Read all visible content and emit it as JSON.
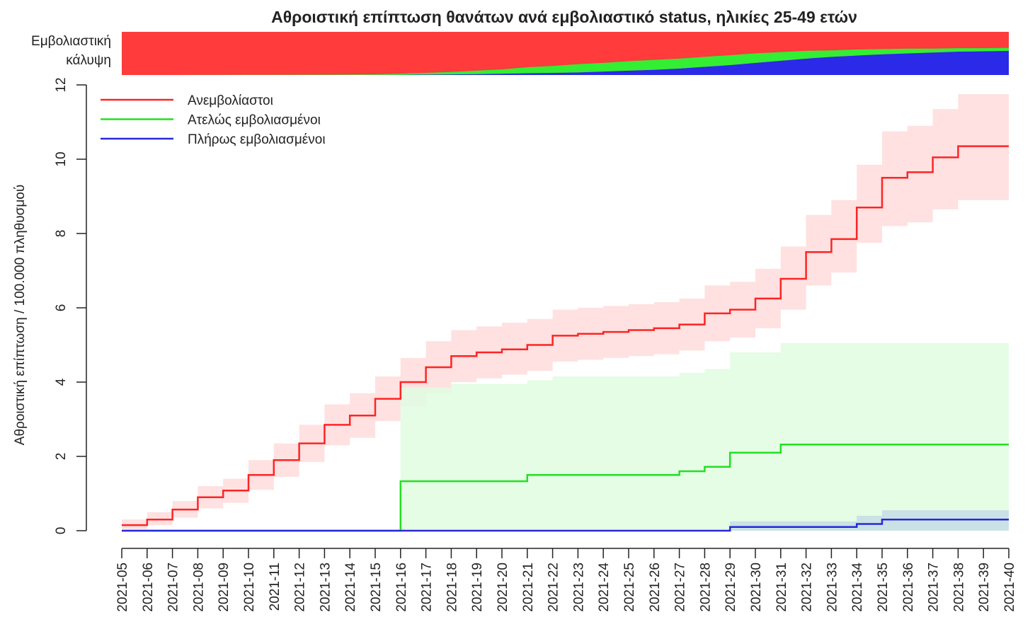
{
  "chart_data": {
    "type": "line",
    "step": true,
    "title": "Αθροιστική επίπτωση θανάτων ανά εμβολιαστικό status, ηλικίες 25-49 ετών",
    "ylabel": "Αθροιστική επίπτωση / 100.000 πληθυσμού",
    "categories": [
      "2021-05",
      "2021-06",
      "2021-07",
      "2021-08",
      "2021-09",
      "2021-10",
      "2021-11",
      "2021-12",
      "2021-13",
      "2021-14",
      "2021-15",
      "2021-16",
      "2021-17",
      "2021-18",
      "2021-19",
      "2021-20",
      "2021-21",
      "2021-22",
      "2021-23",
      "2021-24",
      "2021-25",
      "2021-26",
      "2021-27",
      "2021-28",
      "2021-29",
      "2021-30",
      "2021-31",
      "2021-32",
      "2021-33",
      "2021-34",
      "2021-35",
      "2021-36",
      "2021-37",
      "2021-38",
      "2021-39",
      "2021-40"
    ],
    "ylim": [
      0,
      12
    ],
    "yticks": [
      0,
      2,
      4,
      6,
      8,
      10,
      12
    ],
    "legend": "top-left",
    "series": [
      {
        "name": "Ανεμβολίαστοι",
        "color": "#ff2424",
        "band_color": "#ffdcdc",
        "values": [
          0.15,
          0.3,
          0.57,
          0.9,
          1.08,
          1.5,
          1.9,
          2.35,
          2.85,
          3.1,
          3.55,
          4.0,
          4.4,
          4.7,
          4.8,
          4.88,
          5.0,
          5.25,
          5.3,
          5.35,
          5.4,
          5.45,
          5.55,
          5.85,
          5.95,
          6.25,
          6.78,
          7.5,
          7.85,
          8.7,
          9.5,
          9.65,
          10.05,
          10.35,
          10.35,
          10.35
        ],
        "lower": [
          0.05,
          0.15,
          0.35,
          0.6,
          0.75,
          1.1,
          1.45,
          1.85,
          2.3,
          2.5,
          2.95,
          3.35,
          3.7,
          4.0,
          4.1,
          4.2,
          4.3,
          4.55,
          4.6,
          4.65,
          4.7,
          4.75,
          4.85,
          5.1,
          5.2,
          5.45,
          5.95,
          6.6,
          6.95,
          7.75,
          8.2,
          8.3,
          8.65,
          8.9,
          8.9,
          8.9
        ],
        "upper": [
          0.3,
          0.5,
          0.8,
          1.2,
          1.4,
          1.9,
          2.35,
          2.85,
          3.4,
          3.7,
          4.15,
          4.65,
          5.1,
          5.4,
          5.5,
          5.6,
          5.7,
          5.95,
          6.0,
          6.05,
          6.1,
          6.15,
          6.25,
          6.6,
          6.7,
          7.05,
          7.65,
          8.5,
          8.9,
          9.85,
          10.75,
          10.9,
          11.35,
          11.75,
          11.75,
          11.75
        ]
      },
      {
        "name": "Ατελώς εμβολιασμένοι",
        "color": "#22e022",
        "band_color": "#e0fbe0",
        "values": [
          0,
          0,
          0,
          0,
          0,
          0,
          0,
          0,
          0,
          0,
          0,
          1.33,
          1.33,
          1.33,
          1.33,
          1.33,
          1.5,
          1.5,
          1.5,
          1.5,
          1.5,
          1.5,
          1.6,
          1.72,
          2.1,
          2.1,
          2.32,
          2.32,
          2.32,
          2.32,
          2.32,
          2.32,
          2.32,
          2.32,
          2.32,
          2.32
        ],
        "lower": [
          null,
          null,
          null,
          null,
          null,
          null,
          null,
          null,
          null,
          null,
          null,
          0,
          0,
          0,
          0,
          0,
          0,
          0,
          0,
          0,
          0,
          0,
          0,
          0,
          0,
          0,
          0,
          0,
          0,
          0,
          0,
          0,
          0,
          0,
          0,
          0
        ],
        "upper": [
          null,
          null,
          null,
          null,
          null,
          null,
          null,
          null,
          null,
          null,
          null,
          3.85,
          3.85,
          3.95,
          3.95,
          3.95,
          4.05,
          4.15,
          4.15,
          4.15,
          4.15,
          4.15,
          4.25,
          4.35,
          4.8,
          4.8,
          5.05,
          5.05,
          5.05,
          5.05,
          5.05,
          5.05,
          5.05,
          5.05,
          5.05,
          5.05
        ]
      },
      {
        "name": "Πλήρως εμβολιασμένοι",
        "color": "#2828d8",
        "band_color": "#c6dde6",
        "values": [
          0,
          0,
          0,
          0,
          0,
          0,
          0,
          0,
          0,
          0,
          0,
          0,
          0,
          0,
          0,
          0,
          0,
          0,
          0,
          0,
          0,
          0,
          0,
          0,
          0.1,
          0.1,
          0.1,
          0.1,
          0.1,
          0.18,
          0.3,
          0.3,
          0.3,
          0.3,
          0.3,
          0.3
        ],
        "lower": [
          null,
          null,
          null,
          null,
          null,
          null,
          null,
          null,
          null,
          null,
          null,
          null,
          null,
          null,
          null,
          null,
          null,
          null,
          null,
          null,
          null,
          null,
          null,
          null,
          0,
          0,
          0,
          0,
          0,
          0,
          0,
          0,
          0,
          0,
          0,
          0
        ],
        "upper": [
          null,
          null,
          null,
          null,
          null,
          null,
          null,
          null,
          null,
          null,
          null,
          null,
          null,
          null,
          null,
          null,
          null,
          null,
          null,
          null,
          null,
          null,
          null,
          null,
          0.25,
          0.25,
          0.25,
          0.25,
          0.25,
          0.4,
          0.55,
          0.55,
          0.55,
          0.55,
          0.55,
          0.55
        ]
      }
    ],
    "coverage": {
      "label_lines": [
        "Εμβολιαστική",
        "κάλυψη"
      ],
      "ylim": [
        0,
        100
      ],
      "background_color": "#ff3b3b",
      "series": [
        {
          "color": "#2a2ae8",
          "values": [
            0,
            0,
            0,
            0,
            0,
            0,
            0,
            0,
            0.2,
            0.2,
            0.2,
            0.5,
            1,
            1.5,
            2,
            3,
            4,
            5,
            6,
            8,
            10,
            12,
            15,
            19,
            23,
            28,
            33,
            38,
            42,
            45,
            48,
            50,
            52,
            54,
            55,
            56
          ]
        },
        {
          "color": "#33ee33",
          "values": [
            0,
            0,
            0,
            0.2,
            0.3,
            0.4,
            0.5,
            0.6,
            0.8,
            1,
            1.5,
            2.5,
            4,
            5.5,
            8,
            10,
            14,
            16,
            19,
            20,
            22,
            23,
            23,
            23,
            23,
            22,
            20,
            18,
            15,
            14,
            12,
            11,
            9,
            8,
            7,
            7
          ]
        }
      ]
    }
  }
}
